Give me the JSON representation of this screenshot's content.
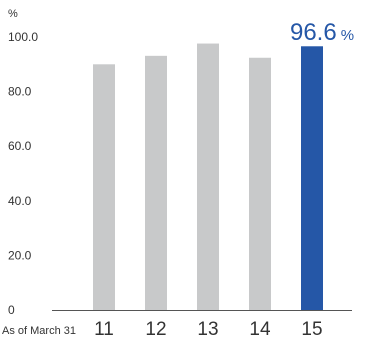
{
  "chart_data": {
    "type": "bar",
    "y_unit": "%",
    "categories": [
      "11",
      "12",
      "13",
      "14",
      "15"
    ],
    "values": [
      90.0,
      93.1,
      97.6,
      92.4,
      96.6
    ],
    "ylim": [
      0,
      100
    ],
    "y_ticks": [
      "0",
      "20.0",
      "40.0",
      "60.0",
      "80.0",
      "100.0"
    ],
    "y_tick_values": [
      0,
      20,
      40,
      60,
      80,
      100
    ],
    "x_caption": "As of March 31",
    "grid": false,
    "highlight_index": 4,
    "highlight_label": {
      "value": "96.6",
      "unit": "%"
    },
    "colors": {
      "default_bar": "#c8c9ca",
      "highlight_bar": "#2557a7",
      "axis": "#555555"
    }
  }
}
